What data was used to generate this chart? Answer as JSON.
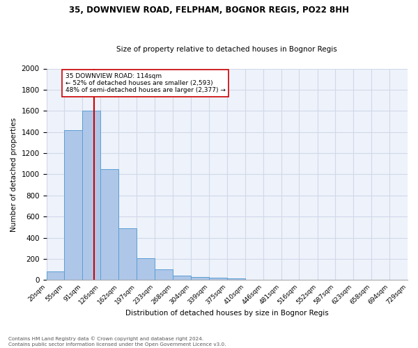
{
  "title1": "35, DOWNVIEW ROAD, FELPHAM, BOGNOR REGIS, PO22 8HH",
  "title2": "Size of property relative to detached houses in Bognor Regis",
  "xlabel": "Distribution of detached houses by size in Bognor Regis",
  "ylabel": "Number of detached properties",
  "footnote1": "Contains HM Land Registry data © Crown copyright and database right 2024.",
  "footnote2": "Contains public sector information licensed under the Open Government Licence v3.0.",
  "bin_labels": [
    "20sqm",
    "55sqm",
    "91sqm",
    "126sqm",
    "162sqm",
    "197sqm",
    "233sqm",
    "268sqm",
    "304sqm",
    "339sqm",
    "375sqm",
    "410sqm",
    "446sqm",
    "481sqm",
    "516sqm",
    "552sqm",
    "587sqm",
    "623sqm",
    "658sqm",
    "694sqm",
    "729sqm"
  ],
  "bar_values": [
    80,
    1420,
    1600,
    1050,
    490,
    205,
    105,
    40,
    28,
    22,
    18,
    0,
    0,
    0,
    0,
    0,
    0,
    0,
    0,
    0
  ],
  "bar_color": "#aec6e8",
  "bar_edge_color": "#5a9fd4",
  "grid_color": "#d0d8e8",
  "background_color": "#eef2fa",
  "property_line_x": 114,
  "property_line_color": "#cc0000",
  "annotation_line1": "35 DOWNVIEW ROAD: 114sqm",
  "annotation_line2": "← 52% of detached houses are smaller (2,593)",
  "annotation_line3": "48% of semi-detached houses are larger (2,377) →",
  "annotation_box_color": "#ffffff",
  "annotation_box_edge": "#cc0000",
  "ylim": [
    0,
    2000
  ],
  "yticks": [
    0,
    200,
    400,
    600,
    800,
    1000,
    1200,
    1400,
    1600,
    1800,
    2000
  ],
  "bin_edges": [
    20,
    55,
    91,
    126,
    162,
    197,
    233,
    268,
    304,
    339,
    375,
    410,
    446,
    481,
    516,
    552,
    587,
    623,
    658,
    694,
    729
  ]
}
